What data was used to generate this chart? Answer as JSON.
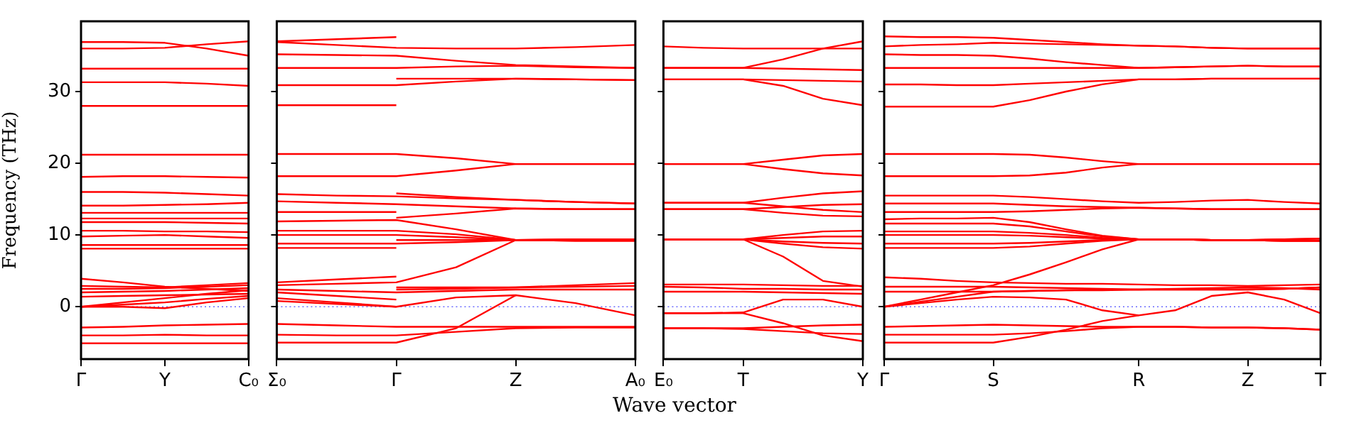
{
  "chart_data": [
    {
      "type": "line",
      "ylabel": "Frequency (THz)",
      "categories": [
        "Γ",
        null,
        "Y",
        null,
        "C₀"
      ],
      "ylim": [
        -7.3,
        39.8
      ],
      "yticks": [
        0,
        10,
        20,
        30
      ],
      "grid": false,
      "legend": false,
      "ref_lines": [
        {
          "axis": "y",
          "value": 0,
          "label": null,
          "color": "#6a6aff",
          "line_style": "dotted"
        }
      ],
      "series": [
        {
          "color": "#ff0000",
          "values": [
            36.9,
            36.9,
            36.8,
            36.0,
            35.0
          ]
        },
        {
          "color": "#ff0000",
          "values": [
            36.0,
            36.0,
            36.1,
            36.6,
            37.0
          ]
        },
        {
          "color": "#ff0000",
          "values": [
            33.2,
            33.2,
            33.2,
            33.2,
            33.2
          ]
        },
        {
          "color": "#ff0000",
          "values": [
            31.3,
            31.3,
            31.3,
            31.1,
            30.8
          ]
        },
        {
          "color": "#ff0000",
          "values": [
            28.0,
            28.0,
            28.0,
            28.0,
            28.0
          ]
        },
        {
          "color": "#ff0000",
          "values": [
            21.2,
            21.2,
            21.2,
            21.2,
            21.2
          ]
        },
        {
          "color": "#ff0000",
          "values": [
            18.1,
            18.2,
            18.2,
            18.1,
            18.0
          ]
        },
        {
          "color": "#ff0000",
          "values": [
            16.0,
            16.0,
            15.9,
            15.7,
            15.5
          ]
        },
        {
          "color": "#ff0000",
          "values": [
            14.1,
            14.1,
            14.2,
            14.3,
            14.5
          ]
        },
        {
          "color": "#ff0000",
          "values": [
            13.1,
            13.1,
            13.1,
            13.1,
            13.1
          ]
        },
        {
          "color": "#ff0000",
          "values": [
            12.3,
            12.3,
            12.3,
            12.3,
            12.3
          ]
        },
        {
          "color": "#ff0000",
          "values": [
            11.8,
            11.8,
            11.8,
            11.7,
            11.6
          ]
        },
        {
          "color": "#ff0000",
          "values": [
            10.6,
            10.6,
            10.5,
            10.5,
            10.4
          ]
        },
        {
          "color": "#ff0000",
          "values": [
            9.8,
            9.9,
            10.0,
            9.8,
            9.6
          ]
        },
        {
          "color": "#ff0000",
          "values": [
            8.6,
            8.6,
            8.6,
            8.6,
            8.6
          ]
        },
        {
          "color": "#ff0000",
          "values": [
            8.1,
            8.1,
            8.1,
            8.1,
            8.1
          ]
        },
        {
          "color": "#ff0000",
          "values": [
            3.9,
            3.4,
            2.8,
            2.5,
            2.2
          ]
        },
        {
          "color": "#ff0000",
          "values": [
            2.9,
            2.8,
            2.7,
            3.0,
            3.3
          ]
        },
        {
          "color": "#ff0000",
          "values": [
            2.5,
            2.5,
            2.6,
            2.8,
            3.0
          ]
        },
        {
          "color": "#ff0000",
          "values": [
            2.0,
            2.1,
            2.2,
            2.4,
            2.6
          ]
        },
        {
          "color": "#ff0000",
          "values": [
            1.4,
            1.5,
            1.6,
            1.7,
            1.8
          ]
        },
        {
          "color": "#ff0000",
          "values": [
            0,
            0.6,
            1.2,
            1.8,
            2.3
          ]
        },
        {
          "color": "#ff0000",
          "values": [
            0,
            0.3,
            0.6,
            1.1,
            1.5
          ]
        },
        {
          "color": "#ff0000",
          "values": [
            0,
            0,
            -0.2,
            0.6,
            1.2
          ]
        },
        {
          "color": "#ff0000",
          "values": [
            -2.9,
            -2.8,
            -2.6,
            -2.5,
            -2.4
          ]
        },
        {
          "color": "#ff0000",
          "values": [
            -4.0,
            -4.0,
            -3.9,
            -4.0,
            -4.0
          ]
        },
        {
          "color": "#ff0000",
          "values": [
            -5.1,
            -5.1,
            -5.1,
            -5.1,
            -5.1
          ]
        }
      ]
    },
    {
      "type": "line",
      "categories": [
        "Σ₀",
        null,
        "Γ",
        null,
        "Z",
        null,
        "A₀"
      ],
      "ylim": [
        -7.3,
        39.8
      ],
      "yticks": [
        0,
        10,
        20,
        30
      ],
      "tick_labels": "x",
      "grid": false,
      "legend": false,
      "ref_lines": [
        {
          "axis": "y",
          "value": 0,
          "label": null,
          "color": "#6a6aff",
          "line_style": "dotted"
        }
      ],
      "series": [
        {
          "color": "#ff0000",
          "values": [
            37.0,
            37.3,
            37.6,
            null,
            null,
            null,
            null
          ]
        },
        {
          "color": "#ff0000",
          "values": [
            36.9,
            36.5,
            36.1,
            36.0,
            36.0,
            36.2,
            36.5
          ]
        },
        {
          "color": "#ff0000",
          "values": [
            35.2,
            35.1,
            35.0,
            34.3,
            33.7,
            33.5,
            33.3
          ]
        },
        {
          "color": "#ff0000",
          "values": [
            33.3,
            33.3,
            33.3,
            33.5,
            33.6,
            33.4,
            33.3
          ]
        },
        {
          "color": "#ff0000",
          "values": [
            30.9,
            30.9,
            30.9,
            31.4,
            31.8,
            31.7,
            31.6
          ]
        },
        {
          "color": "#ff0000",
          "values": [
            null,
            null,
            31.8,
            31.8,
            31.8,
            31.7,
            31.6
          ]
        },
        {
          "color": "#ff0000",
          "values": [
            28.1,
            28.1,
            28.1,
            null,
            null,
            null,
            null
          ]
        },
        {
          "color": "#ff0000",
          "values": [
            21.3,
            21.3,
            21.3,
            20.7,
            19.9,
            19.9,
            19.9
          ]
        },
        {
          "color": "#ff0000",
          "values": [
            18.2,
            18.2,
            18.2,
            19.0,
            19.9,
            19.9,
            19.9
          ]
        },
        {
          "color": "#ff0000",
          "values": [
            15.7,
            15.5,
            15.4,
            15.1,
            14.9,
            14.6,
            14.4
          ]
        },
        {
          "color": "#ff0000",
          "values": [
            null,
            null,
            15.8,
            15.3,
            14.9,
            14.6,
            14.4
          ]
        },
        {
          "color": "#ff0000",
          "values": [
            14.7,
            14.5,
            14.3,
            14.0,
            13.7,
            13.6,
            13.6
          ]
        },
        {
          "color": "#ff0000",
          "values": [
            13.2,
            13.2,
            13.2,
            null,
            null,
            null,
            null
          ]
        },
        {
          "color": "#ff0000",
          "values": [
            null,
            null,
            12.4,
            13.0,
            13.7,
            13.6,
            13.6
          ]
        },
        {
          "color": "#ff0000",
          "values": [
            11.9,
            12.0,
            12.1,
            10.8,
            9.3,
            9.4,
            9.4
          ]
        },
        {
          "color": "#ff0000",
          "values": [
            10.6,
            10.6,
            10.6,
            10.1,
            9.3,
            9.2,
            9.2
          ]
        },
        {
          "color": "#ff0000",
          "values": [
            10.0,
            10.0,
            10.0,
            9.7,
            9.3,
            9.3,
            9.3
          ]
        },
        {
          "color": "#ff0000",
          "values": [
            null,
            null,
            9.3,
            9.3,
            9.3,
            9.4,
            9.4
          ]
        },
        {
          "color": "#ff0000",
          "values": [
            8.8,
            8.8,
            8.8,
            9.0,
            9.3,
            9.2,
            9.2
          ]
        },
        {
          "color": "#ff0000",
          "values": [
            8.2,
            8.2,
            8.2,
            null,
            null,
            null,
            null
          ]
        },
        {
          "color": "#ff0000",
          "values": [
            3.4,
            3.8,
            4.2,
            null,
            null,
            null,
            null
          ]
        },
        {
          "color": "#ff0000",
          "values": [
            3.0,
            3.2,
            3.4,
            5.5,
            9.3,
            null,
            null
          ]
        },
        {
          "color": "#ff0000",
          "values": [
            null,
            null,
            2.7,
            2.7,
            2.7,
            3.0,
            3.3
          ]
        },
        {
          "color": "#ff0000",
          "values": [
            null,
            null,
            2.4,
            2.5,
            2.7,
            2.8,
            2.9
          ]
        },
        {
          "color": "#ff0000",
          "values": [
            2.4,
            2.2,
            2.0,
            2.2,
            2.4,
            2.4,
            2.4
          ]
        },
        {
          "color": "#ff0000",
          "values": [
            2.0,
            1.5,
            1.0,
            null,
            null,
            null,
            null
          ]
        },
        {
          "color": "#ff0000",
          "values": [
            1.2,
            0.6,
            0,
            1.3,
            1.6,
            0.5,
            -1.2
          ]
        },
        {
          "color": "#ff0000",
          "values": [
            0.8,
            0.4,
            0,
            null,
            null,
            null,
            null
          ]
        },
        {
          "color": "#ff0000",
          "values": [
            -5.0,
            -5.0,
            -5.0,
            -3.0,
            1.6,
            null,
            null
          ]
        },
        {
          "color": "#ff0000",
          "values": [
            -2.4,
            -2.6,
            -2.8,
            -2.8,
            -2.8,
            -2.8,
            -2.8
          ]
        },
        {
          "color": "#ff0000",
          "values": [
            -3.9,
            -4.0,
            -4.0,
            -3.5,
            -3.0,
            -2.9,
            -2.9
          ]
        }
      ]
    },
    {
      "type": "line",
      "xlabel": "Wave vector",
      "categories": [
        "E₀",
        null,
        "T",
        null,
        null,
        "Y"
      ],
      "ylim": [
        -7.3,
        39.8
      ],
      "yticks": [
        0,
        10,
        20,
        30
      ],
      "tick_labels": "x",
      "grid": false,
      "legend": false,
      "ref_lines": [
        {
          "axis": "y",
          "value": 0,
          "label": null,
          "color": "#6a6aff",
          "line_style": "dotted"
        }
      ],
      "series": [
        {
          "color": "#ff0000",
          "values": [
            36.3,
            36.1,
            36.0,
            36.0,
            36.0,
            36.0
          ]
        },
        {
          "color": "#ff0000",
          "values": [
            33.3,
            33.3,
            33.3,
            34.5,
            36.0,
            37.0
          ]
        },
        {
          "color": "#ff0000",
          "values": [
            33.3,
            33.3,
            33.3,
            33.2,
            33.1,
            33.0
          ]
        },
        {
          "color": "#ff0000",
          "values": [
            31.7,
            31.7,
            31.7,
            31.6,
            31.5,
            31.4
          ]
        },
        {
          "color": "#ff0000",
          "values": [
            31.7,
            31.7,
            31.7,
            30.8,
            29.0,
            28.1
          ]
        },
        {
          "color": "#ff0000",
          "values": [
            19.9,
            19.9,
            19.9,
            20.5,
            21.1,
            21.3
          ]
        },
        {
          "color": "#ff0000",
          "values": [
            19.9,
            19.9,
            19.9,
            19.2,
            18.6,
            18.3
          ]
        },
        {
          "color": "#ff0000",
          "values": [
            14.5,
            14.5,
            14.5,
            15.2,
            15.8,
            16.1
          ]
        },
        {
          "color": "#ff0000",
          "values": [
            14.5,
            14.5,
            14.5,
            14.0,
            13.5,
            13.2
          ]
        },
        {
          "color": "#ff0000",
          "values": [
            13.6,
            13.6,
            13.6,
            13.9,
            14.2,
            14.3
          ]
        },
        {
          "color": "#ff0000",
          "values": [
            13.6,
            13.6,
            13.6,
            13.1,
            12.7,
            12.6
          ]
        },
        {
          "color": "#ff0000",
          "values": [
            9.4,
            9.4,
            9.4,
            10.0,
            10.5,
            10.6
          ]
        },
        {
          "color": "#ff0000",
          "values": [
            9.4,
            9.4,
            9.4,
            9.6,
            9.8,
            9.8
          ]
        },
        {
          "color": "#ff0000",
          "values": [
            9.4,
            9.4,
            9.4,
            9.1,
            8.9,
            8.8
          ]
        },
        {
          "color": "#ff0000",
          "values": [
            9.4,
            9.4,
            9.4,
            8.8,
            8.3,
            8.1
          ]
        },
        {
          "color": "#ff0000",
          "values": [
            9.4,
            9.4,
            9.4,
            7.0,
            3.6,
            2.8
          ]
        },
        {
          "color": "#ff0000",
          "values": [
            3.1,
            3.1,
            3.1,
            3.0,
            2.9,
            2.9
          ]
        },
        {
          "color": "#ff0000",
          "values": [
            2.8,
            2.7,
            2.5,
            2.5,
            2.4,
            2.4
          ]
        },
        {
          "color": "#ff0000",
          "values": [
            2.1,
            2.1,
            2.1,
            2.0,
            1.9,
            1.8
          ]
        },
        {
          "color": "#ff0000",
          "values": [
            -0.9,
            -0.9,
            -0.8,
            1.0,
            1.0,
            0
          ]
        },
        {
          "color": "#ff0000",
          "values": [
            -0.9,
            -0.9,
            -0.9,
            -2.3,
            -4.0,
            -4.8
          ]
        },
        {
          "color": "#ff0000",
          "values": [
            -3.0,
            -3.0,
            -3.0,
            -2.8,
            -2.6,
            -2.5
          ]
        },
        {
          "color": "#ff0000",
          "values": [
            -3.0,
            -3.0,
            -3.1,
            -3.4,
            -3.7,
            -3.8
          ]
        }
      ]
    },
    {
      "type": "line",
      "categories": [
        "Γ",
        null,
        null,
        "S",
        null,
        null,
        null,
        "R",
        null,
        null,
        "Z",
        null,
        "T"
      ],
      "ylim": [
        -7.3,
        39.8
      ],
      "yticks": [
        0,
        10,
        20,
        30
      ],
      "tick_labels": "x",
      "grid": false,
      "legend": false,
      "ref_lines": [
        {
          "axis": "y",
          "value": 0,
          "label": null,
          "color": "#6a6aff",
          "line_style": "dotted"
        }
      ],
      "series": [
        {
          "color": "#ff0000",
          "values": [
            37.7,
            37.6,
            37.6,
            37.5,
            37.2,
            36.9,
            36.6,
            36.4,
            36.3,
            36.1,
            36.0,
            36.0,
            36.0
          ]
        },
        {
          "color": "#ff0000",
          "values": [
            36.3,
            36.5,
            36.6,
            36.8,
            36.7,
            36.6,
            36.5,
            36.4,
            36.3,
            36.1,
            36.0,
            36.0,
            36.0
          ]
        },
        {
          "color": "#ff0000",
          "values": [
            35.2,
            35.1,
            35.1,
            35.0,
            34.6,
            34.1,
            33.7,
            33.3,
            33.4,
            33.5,
            33.6,
            33.5,
            33.5
          ]
        },
        {
          "color": "#ff0000",
          "values": [
            33.3,
            33.3,
            33.3,
            33.3,
            33.3,
            33.3,
            33.3,
            33.3,
            33.4,
            33.5,
            33.6,
            33.5,
            33.5
          ]
        },
        {
          "color": "#ff0000",
          "values": [
            31.0,
            31.0,
            30.9,
            30.9,
            31.1,
            31.3,
            31.5,
            31.7,
            31.7,
            31.8,
            31.8,
            31.8,
            31.8
          ]
        },
        {
          "color": "#ff0000",
          "values": [
            27.9,
            27.9,
            27.9,
            27.9,
            28.8,
            30.0,
            31.0,
            31.7,
            31.7,
            31.8,
            31.8,
            31.8,
            31.8
          ]
        },
        {
          "color": "#ff0000",
          "values": [
            21.3,
            21.3,
            21.3,
            21.3,
            21.2,
            20.8,
            20.3,
            19.9,
            19.9,
            19.9,
            19.9,
            19.9,
            19.9
          ]
        },
        {
          "color": "#ff0000",
          "values": [
            18.2,
            18.2,
            18.2,
            18.2,
            18.3,
            18.7,
            19.4,
            19.9,
            19.9,
            19.9,
            19.9,
            19.9,
            19.9
          ]
        },
        {
          "color": "#ff0000",
          "values": [
            15.5,
            15.5,
            15.5,
            15.5,
            15.3,
            15.0,
            14.7,
            14.5,
            14.6,
            14.8,
            14.9,
            14.6,
            14.4
          ]
        },
        {
          "color": "#ff0000",
          "values": [
            14.4,
            14.4,
            14.4,
            14.4,
            14.2,
            14.0,
            13.9,
            13.8,
            13.7,
            13.6,
            13.6,
            13.6,
            13.6
          ]
        },
        {
          "color": "#ff0000",
          "values": [
            13.2,
            13.2,
            13.2,
            13.2,
            13.3,
            13.5,
            13.7,
            13.8,
            13.7,
            13.6,
            13.6,
            13.6,
            13.6
          ]
        },
        {
          "color": "#ff0000",
          "values": [
            12.2,
            12.3,
            12.3,
            12.4,
            11.8,
            10.8,
            9.9,
            9.4,
            9.4,
            9.3,
            9.3,
            9.4,
            9.5
          ]
        },
        {
          "color": "#ff0000",
          "values": [
            11.6,
            11.6,
            11.6,
            11.6,
            11.2,
            10.5,
            9.8,
            9.4,
            9.4,
            9.3,
            9.3,
            9.4,
            9.5
          ]
        },
        {
          "color": "#ff0000",
          "values": [
            10.5,
            10.5,
            10.5,
            10.5,
            10.3,
            10.0,
            9.6,
            9.4,
            9.4,
            9.3,
            9.3,
            9.2,
            9.2
          ]
        },
        {
          "color": "#ff0000",
          "values": [
            10.0,
            10.0,
            10.0,
            10.0,
            9.9,
            9.7,
            9.5,
            9.4,
            9.4,
            9.3,
            9.3,
            9.2,
            9.2
          ]
        },
        {
          "color": "#ff0000",
          "values": [
            8.8,
            8.8,
            8.8,
            8.8,
            8.9,
            9.1,
            9.3,
            9.4,
            9.4,
            9.3,
            9.3,
            9.2,
            9.2
          ]
        },
        {
          "color": "#ff0000",
          "values": [
            8.2,
            8.2,
            8.2,
            8.2,
            8.4,
            8.8,
            9.2,
            9.4,
            9.4,
            9.3,
            9.3,
            9.2,
            9.2
          ]
        },
        {
          "color": "#ff0000",
          "values": [
            4.1,
            3.9,
            3.6,
            3.4,
            3.3,
            3.2,
            3.2,
            3.1,
            3.0,
            3.0,
            2.9,
            3.0,
            3.1
          ]
        },
        {
          "color": "#ff0000",
          "values": [
            0,
            1.0,
            2.0,
            3.0,
            4.5,
            6.2,
            8.0,
            9.4,
            null,
            null,
            null,
            null,
            null
          ]
        },
        {
          "color": "#ff0000",
          "values": [
            0,
            0.7,
            1.4,
            2.1,
            2.2,
            2.3,
            2.4,
            2.4,
            2.5,
            2.6,
            2.7,
            2.6,
            2.4
          ]
        },
        {
          "color": "#ff0000",
          "values": [
            2.8,
            2.8,
            2.8,
            2.8,
            2.7,
            2.6,
            2.5,
            2.4,
            2.4,
            2.4,
            2.4,
            2.5,
            2.7
          ]
        },
        {
          "color": "#ff0000",
          "values": [
            2.1,
            2.1,
            2.1,
            2.1,
            2.2,
            2.3,
            2.3,
            2.4,
            2.4,
            2.4,
            2.4,
            2.5,
            2.7
          ]
        },
        {
          "color": "#ff0000",
          "values": [
            0,
            0.5,
            1.0,
            1.4,
            1.3,
            1.0,
            -0.5,
            -1.2,
            -0.5,
            1.5,
            2.0,
            1.0,
            -0.9
          ]
        },
        {
          "color": "#ff0000",
          "values": [
            -2.8,
            -2.7,
            -2.6,
            -2.5,
            -2.6,
            -2.7,
            -2.8,
            -2.8,
            -2.8,
            -2.9,
            -2.9,
            -3.0,
            -3.2
          ]
        },
        {
          "color": "#ff0000",
          "values": [
            -3.9,
            -3.9,
            -3.9,
            -3.9,
            -3.7,
            -3.4,
            -3.0,
            -2.8,
            -2.8,
            -2.9,
            -2.9,
            -3.0,
            -3.2
          ]
        },
        {
          "color": "#ff0000",
          "values": [
            -5.0,
            -5.0,
            -5.0,
            -5.0,
            -4.2,
            -3.2,
            -2.0,
            -1.2,
            null,
            null,
            null,
            null,
            null
          ]
        }
      ]
    }
  ]
}
